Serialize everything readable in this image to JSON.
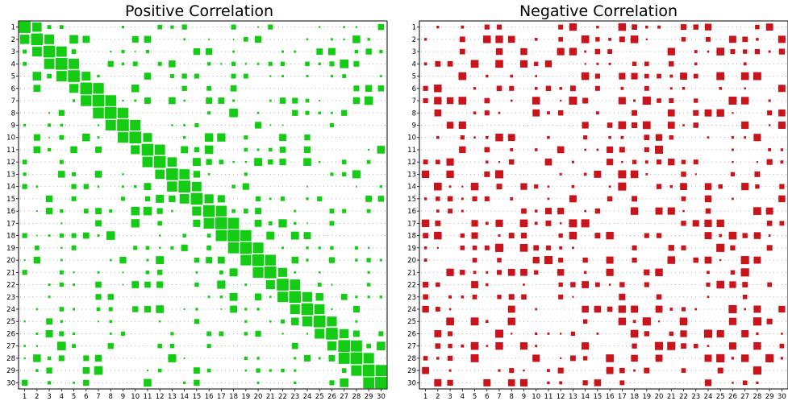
{
  "chart_data": [
    {
      "type": "heatmap",
      "title": "Positive Correlation",
      "xlabel": "",
      "ylabel": "",
      "categories": [
        "1",
        "2",
        "3",
        "4",
        "5",
        "6",
        "7",
        "8",
        "9",
        "10",
        "11",
        "12",
        "13",
        "14",
        "15",
        "16",
        "17",
        "18",
        "19",
        "20",
        "21",
        "22",
        "23",
        "24",
        "25",
        "26",
        "27",
        "28",
        "29",
        "30"
      ],
      "color": "#14cc14",
      "seed": 1234,
      "mode": "positive",
      "value_scale": "relative correlation strength 0-1, drawn as square marker size",
      "grid": "dotted"
    },
    {
      "type": "heatmap",
      "title": "Negative Correlation",
      "xlabel": "",
      "ylabel": "",
      "categories": [
        "1",
        "2",
        "3",
        "4",
        "5",
        "6",
        "7",
        "8",
        "9",
        "10",
        "11",
        "12",
        "13",
        "14",
        "15",
        "16",
        "17",
        "18",
        "19",
        "20",
        "21",
        "22",
        "23",
        "24",
        "25",
        "26",
        "27",
        "28",
        "29",
        "30"
      ],
      "color": "#c8141a",
      "seed": 98765,
      "mode": "negative",
      "value_scale": "relative correlation strength 0-1, drawn as square marker size",
      "grid": "dotted"
    }
  ]
}
